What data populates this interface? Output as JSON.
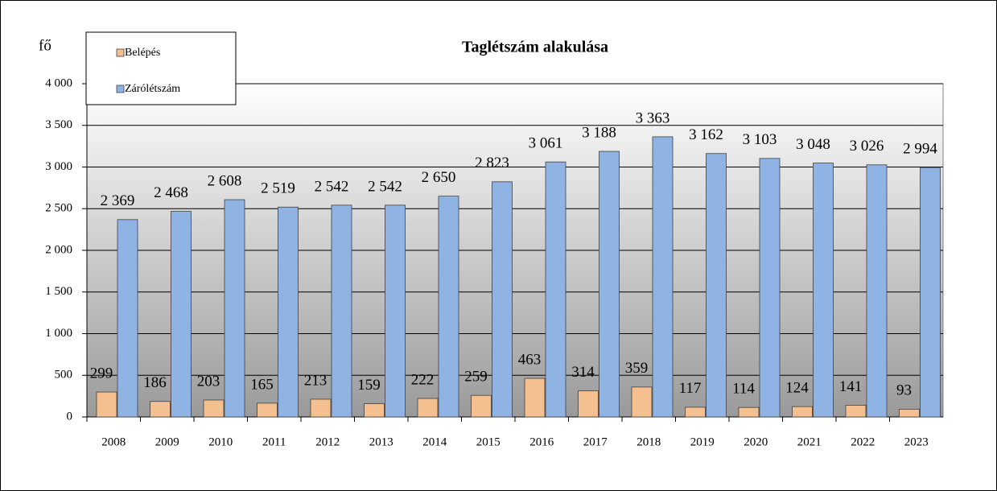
{
  "chart_data": {
    "type": "bar",
    "title": "Taglétszám alakulása",
    "y_label": "fő",
    "categories": [
      "2008",
      "2009",
      "2010",
      "2011",
      "2012",
      "2013",
      "2014",
      "2015",
      "2016",
      "2017",
      "2018",
      "2019",
      "2020",
      "2021",
      "2022",
      "2023"
    ],
    "series": [
      {
        "name": "Belépés",
        "color": "#f5c08f",
        "values": [
          299,
          186,
          203,
          165,
          213,
          159,
          222,
          259,
          463,
          314,
          359,
          117,
          114,
          124,
          141,
          93
        ]
      },
      {
        "name": "Zárólétszám",
        "color": "#8fb4e3",
        "values": [
          2369,
          2468,
          2608,
          2519,
          2542,
          2542,
          2650,
          2823,
          3061,
          3188,
          3363,
          3162,
          3103,
          3048,
          3026,
          2994
        ],
        "value_labels": [
          "2 369",
          "2 468",
          "2 608",
          "2 519",
          "2 542",
          "2 542",
          "2 650",
          "2 823",
          "3 061",
          "3 188",
          "3 363",
          "3 162",
          "3 103",
          "3 048",
          "3 026",
          "2 994"
        ]
      }
    ],
    "ylim": [
      0,
      4000
    ],
    "yticks": [
      0,
      500,
      {
        "value": 1000,
        "label": "1 000"
      },
      {
        "value": 1500,
        "label": "1 500"
      },
      {
        "value": 2000,
        "label": "2 000"
      },
      {
        "value": 2500,
        "label": "2 500"
      },
      {
        "value": 3000,
        "label": "3 000"
      },
      {
        "value": 3500,
        "label": "3 500"
      },
      {
        "value": 4000,
        "label": "4 000"
      }
    ],
    "grid": true,
    "legend_position": "top-left"
  }
}
